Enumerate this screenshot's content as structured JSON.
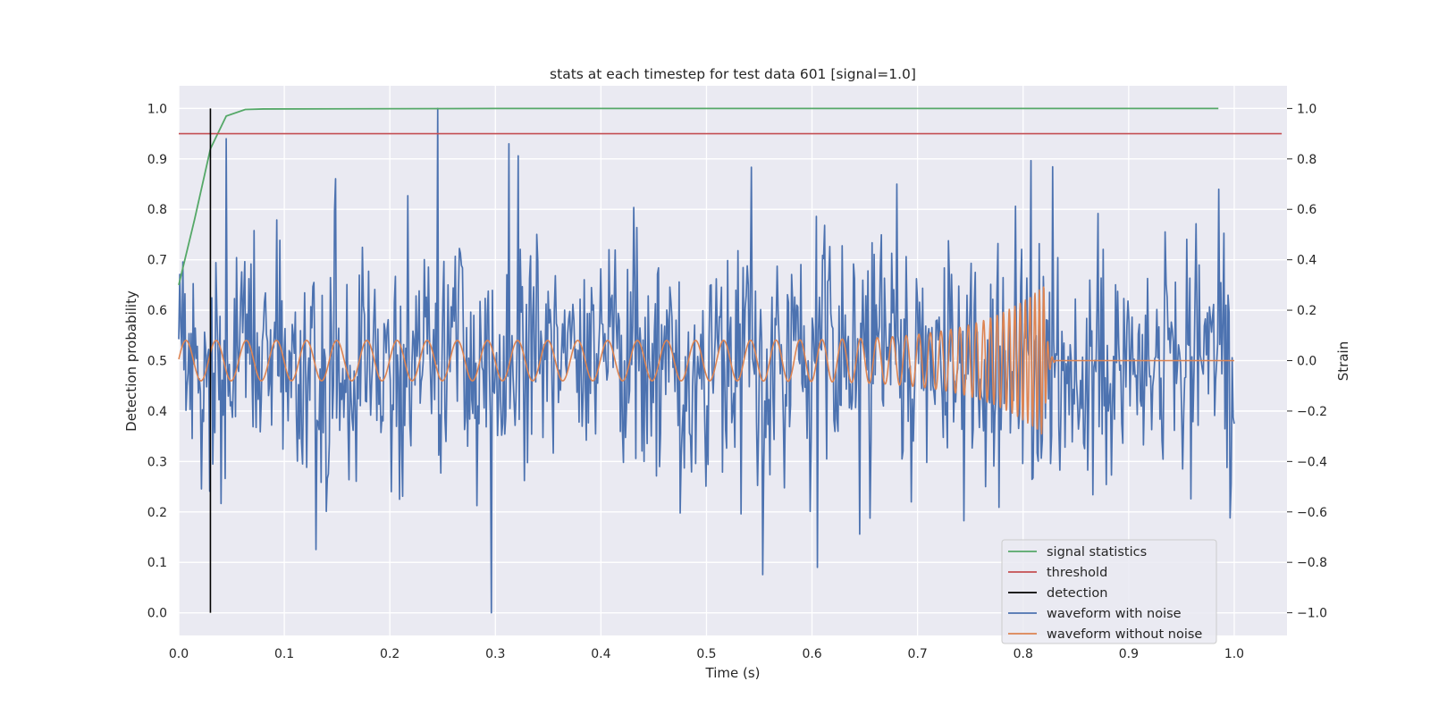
{
  "chart_data": {
    "type": "line",
    "title": "stats at each timestep for test data 601 [signal=1.0]",
    "xlabel": "Time (s)",
    "ylabel_left": "Detection probability",
    "ylabel_right": "Strain",
    "xlim": [
      0.0,
      1.05
    ],
    "ylim_left": [
      -0.045,
      1.045
    ],
    "ylim_right": [
      -1.09,
      1.09
    ],
    "x_ticks": [
      0.0,
      0.1,
      0.2,
      0.3,
      0.4,
      0.5,
      0.6,
      0.7,
      0.8,
      0.9,
      1.0
    ],
    "x_tick_labels": [
      "0.0",
      "0.1",
      "0.2",
      "0.3",
      "0.4",
      "0.5",
      "0.6",
      "0.7",
      "0.8",
      "0.9",
      "1.0"
    ],
    "y_left_ticks": [
      0.0,
      0.1,
      0.2,
      0.3,
      0.4,
      0.5,
      0.6,
      0.7,
      0.8,
      0.9,
      1.0
    ],
    "y_left_tick_labels": [
      "0.0",
      "0.1",
      "0.2",
      "0.3",
      "0.4",
      "0.5",
      "0.6",
      "0.7",
      "0.8",
      "0.9",
      "1.0"
    ],
    "y_right_ticks": [
      -1.0,
      -0.8,
      -0.6,
      -0.4,
      -0.2,
      0.0,
      0.2,
      0.4,
      0.6,
      0.8,
      1.0
    ],
    "y_right_tick_labels": [
      "−1.0",
      "−0.8",
      "−0.6",
      "−0.4",
      "−0.2",
      "0.0",
      "0.2",
      "0.4",
      "0.6",
      "0.8",
      "1.0"
    ],
    "grid": true,
    "legend_position": "lower-right",
    "background_color": "#eaeaf2",
    "series": [
      {
        "name": "signal statistics",
        "axis": "left",
        "color": "#55a868",
        "x": [
          0.0,
          0.015,
          0.03,
          0.045,
          0.063,
          0.08,
          0.3,
          0.6,
          0.985
        ],
        "y": [
          0.65,
          0.78,
          0.92,
          0.985,
          0.998,
          0.999,
          1.0,
          1.0,
          1.0
        ]
      },
      {
        "name": "threshold",
        "axis": "left",
        "color": "#c44e52",
        "x": [
          0.0,
          1.045
        ],
        "y": [
          0.95,
          0.95
        ]
      },
      {
        "name": "detection",
        "axis": "left",
        "color": "#000000",
        "x": [
          0.03,
          0.03
        ],
        "y": [
          0.0,
          1.0
        ]
      },
      {
        "name": "waveform with noise",
        "axis": "right",
        "color": "#4c72b0",
        "x_range": [
          0.0,
          1.0
        ],
        "points": 1024,
        "amplitude_std": 0.25,
        "peaks": [
          {
            "x": 0.045,
            "y": 0.88
          },
          {
            "x": 0.245,
            "y": 1.0
          },
          {
            "x": 0.296,
            "y": -1.0
          },
          {
            "x": 0.313,
            "y": 0.86
          },
          {
            "x": 0.605,
            "y": -0.82
          },
          {
            "x": 0.68,
            "y": 0.7
          },
          {
            "x": 0.985,
            "y": 0.68
          }
        ]
      },
      {
        "name": "waveform without noise",
        "axis": "right",
        "color": "#dd8452",
        "x_range": [
          0.0,
          1.0
        ],
        "amplitude_start": 0.08,
        "amplitude_peak": 0.3,
        "merger_time": 0.82,
        "ringdown_end": 0.83,
        "frequency_start": 35,
        "frequency_peak": 250
      }
    ]
  }
}
